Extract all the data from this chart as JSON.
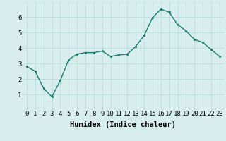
{
  "x": [
    0,
    1,
    2,
    3,
    4,
    5,
    6,
    7,
    8,
    9,
    10,
    11,
    12,
    13,
    14,
    15,
    16,
    17,
    18,
    19,
    20,
    21,
    22,
    23
  ],
  "y": [
    2.8,
    2.5,
    1.4,
    0.85,
    1.9,
    3.25,
    3.6,
    3.7,
    3.7,
    3.8,
    3.45,
    3.55,
    3.6,
    4.1,
    4.8,
    5.95,
    6.5,
    6.3,
    5.5,
    5.1,
    4.55,
    4.35,
    3.9,
    3.45
  ],
  "line_color": "#1a7a6e",
  "marker_color": "#1a7a6e",
  "bg_color": "#d8eeee",
  "grid_color": "#b8d8d8",
  "xlabel": "Humidex (Indice chaleur)",
  "xlim": [
    -0.5,
    23.5
  ],
  "ylim": [
    0,
    7
  ],
  "yticks": [
    1,
    2,
    3,
    4,
    5,
    6
  ],
  "xticks": [
    0,
    1,
    2,
    3,
    4,
    5,
    6,
    7,
    8,
    9,
    10,
    11,
    12,
    13,
    14,
    15,
    16,
    17,
    18,
    19,
    20,
    21,
    22,
    23
  ],
  "xlabel_fontsize": 7.5,
  "tick_fontsize": 6.5,
  "linewidth": 1.0,
  "markersize": 2.5
}
